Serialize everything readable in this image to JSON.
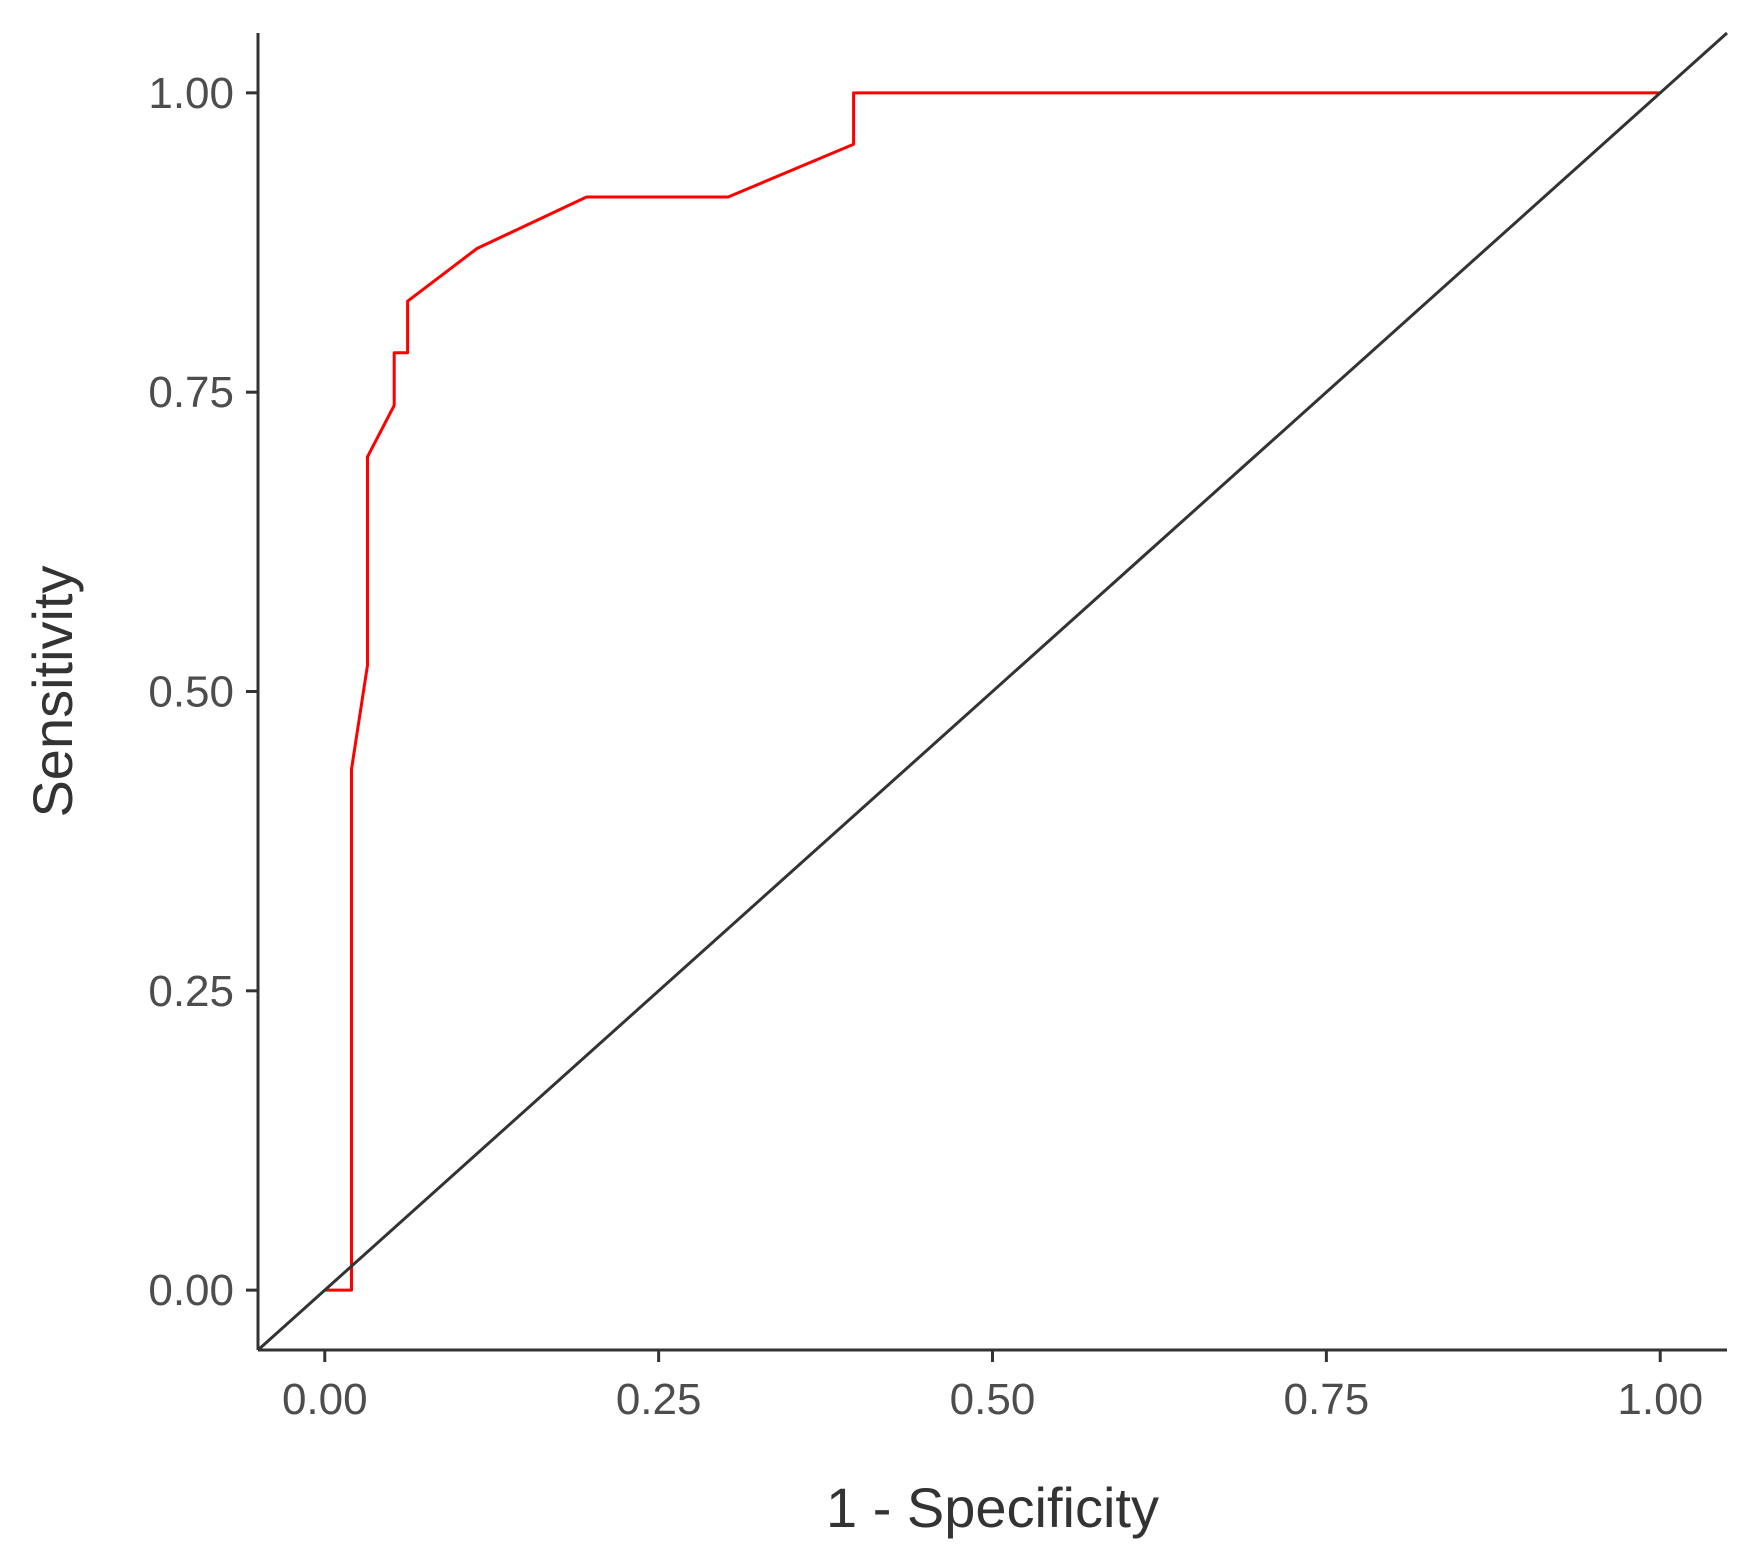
{
  "chart_data": {
    "type": "line",
    "title": "",
    "xlabel": "1 - Specificity",
    "ylabel": "Sensitivity",
    "xlim": [
      -0.05,
      1.05
    ],
    "ylim": [
      -0.05,
      1.05
    ],
    "x_ticks": [
      "0.00",
      "0.25",
      "0.50",
      "0.75",
      "1.00"
    ],
    "y_ticks": [
      "0.00",
      "0.25",
      "0.50",
      "0.75",
      "1.00"
    ],
    "grid": false,
    "legend": "none",
    "series": [
      {
        "color": "#ff0000",
        "points": [
          [
            0.0,
            0.0
          ],
          [
            0.02,
            0.0
          ],
          [
            0.02,
            0.435
          ],
          [
            0.032,
            0.522
          ],
          [
            0.032,
            0.696
          ],
          [
            0.052,
            0.739
          ],
          [
            0.052,
            0.783
          ],
          [
            0.062,
            0.783
          ],
          [
            0.062,
            0.826
          ],
          [
            0.114,
            0.87
          ],
          [
            0.196,
            0.913
          ],
          [
            0.302,
            0.913
          ],
          [
            0.396,
            0.957
          ],
          [
            0.396,
            1.0
          ],
          [
            1.0,
            1.0
          ]
        ]
      },
      {
        "color": "#333333",
        "points": [
          [
            -0.05,
            -0.05
          ],
          [
            1.05,
            1.05
          ]
        ]
      }
    ]
  }
}
